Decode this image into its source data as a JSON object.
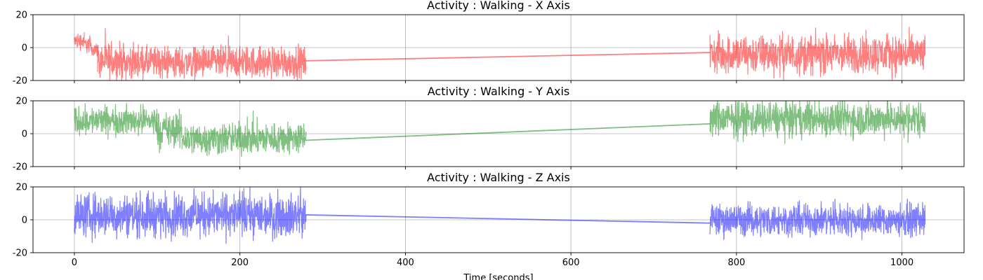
{
  "chart_data": [
    {
      "type": "line",
      "title": "Activity : Walking - X Axis",
      "xlabel": "",
      "ylabel": "",
      "xlim": [
        -50,
        1075
      ],
      "ylim": [
        -20,
        20
      ],
      "xticks": [
        0,
        200,
        400,
        600,
        800,
        1000
      ],
      "yticks": [
        -20,
        0,
        20
      ],
      "x_tick_labels_visible": false,
      "grid": true,
      "color": "#ff0000",
      "alpha": 0.5,
      "segments": [
        {
          "x_start": 0,
          "x_end": 2,
          "center": 4,
          "amp": 3
        },
        {
          "x_start": 2,
          "x_end": 12,
          "center": 4,
          "amp": 5
        },
        {
          "x_start": 12,
          "x_end": 20,
          "center": 2,
          "amp": 5
        },
        {
          "x_start": 20,
          "x_end": 28,
          "center": -1,
          "amp": 4
        },
        {
          "x_start": 28,
          "x_end": 60,
          "center": -8,
          "amp": 10
        },
        {
          "x_start": 60,
          "x_end": 280,
          "center": -9,
          "amp": 9
        },
        {
          "x_start": 768,
          "x_end": 1028,
          "center": -4,
          "amp": 11
        }
      ],
      "connector": {
        "x": [
          280,
          768
        ],
        "y": [
          -8,
          -3
        ]
      }
    },
    {
      "type": "line",
      "title": "Activity : Walking - Y Axis",
      "xlabel": "",
      "ylabel": "",
      "xlim": [
        -50,
        1075
      ],
      "ylim": [
        -20,
        20
      ],
      "xticks": [
        0,
        200,
        400,
        600,
        800,
        1000
      ],
      "yticks": [
        -20,
        0,
        20
      ],
      "x_tick_labels_visible": false,
      "grid": true,
      "color": "#008000",
      "alpha": 0.5,
      "segments": [
        {
          "x_start": 0,
          "x_end": 100,
          "center": 8,
          "amp": 8
        },
        {
          "x_start": 100,
          "x_end": 130,
          "center": 2,
          "amp": 10
        },
        {
          "x_start": 130,
          "x_end": 280,
          "center": -3,
          "amp": 9
        },
        {
          "x_start": 768,
          "x_end": 1028,
          "center": 9,
          "amp": 10
        }
      ],
      "connector": {
        "x": [
          280,
          768
        ],
        "y": [
          -4,
          6
        ]
      }
    },
    {
      "type": "line",
      "title": "Activity : Walking - Z Axis",
      "xlabel": "Time [seconds]",
      "ylabel": "",
      "xlim": [
        -50,
        1075
      ],
      "ylim": [
        -20,
        20
      ],
      "xticks": [
        0,
        200,
        400,
        600,
        800,
        1000
      ],
      "yticks": [
        -20,
        0,
        20
      ],
      "x_tick_labels_visible": true,
      "grid": true,
      "color": "#0000ff",
      "alpha": 0.5,
      "segments": [
        {
          "x_start": 0,
          "x_end": 280,
          "center": 3,
          "amp": 12
        },
        {
          "x_start": 768,
          "x_end": 1028,
          "center": 0,
          "amp": 9
        }
      ],
      "connector": {
        "x": [
          280,
          768
        ],
        "y": [
          3,
          -2
        ]
      }
    }
  ]
}
